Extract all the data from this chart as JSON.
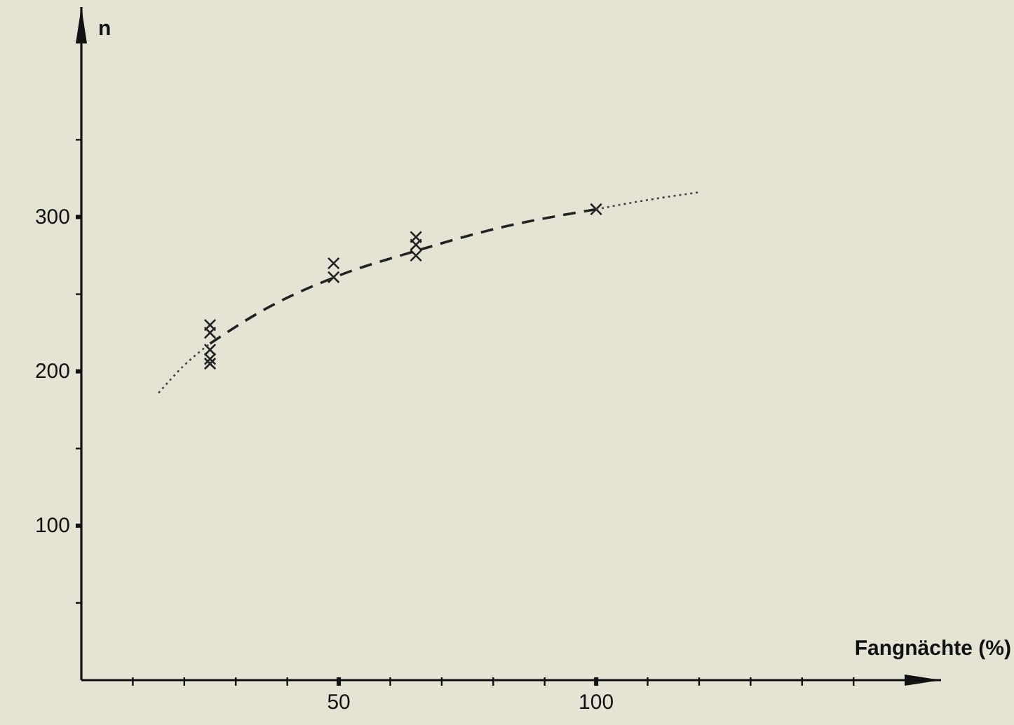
{
  "chart_data": {
    "type": "scatter",
    "xlabel": "Fangnächte (%)",
    "ylabel": "n",
    "xlim": [
      0,
      167
    ],
    "ylim": [
      0,
      436
    ],
    "xticks": [
      {
        "value": 10,
        "label": null
      },
      {
        "value": 20,
        "label": null
      },
      {
        "value": 30,
        "label": null
      },
      {
        "value": 40,
        "label": null
      },
      50,
      {
        "value": 60,
        "label": null
      },
      {
        "value": 70,
        "label": null
      },
      {
        "value": 80,
        "label": null
      },
      {
        "value": 90,
        "label": null
      },
      100,
      {
        "value": 110,
        "label": null
      },
      {
        "value": 120,
        "label": null
      },
      {
        "value": 130,
        "label": null
      },
      {
        "value": 140,
        "label": null
      },
      {
        "value": 150,
        "label": null
      }
    ],
    "yticks": [
      {
        "value": 50,
        "label": null
      },
      100,
      {
        "value": 150,
        "label": null
      },
      200,
      {
        "value": 250,
        "label": null
      },
      300,
      {
        "value": 350,
        "label": null
      }
    ],
    "grid": false,
    "series": [
      {
        "type": "scatter",
        "marker": "cross",
        "color": "#222222",
        "x": [
          25,
          25,
          25,
          25,
          25,
          49,
          49,
          65,
          65,
          65,
          100
        ],
        "values": [
          230,
          225,
          214,
          208,
          205,
          270,
          261,
          287,
          282,
          275,
          305
        ]
      },
      {
        "type": "line",
        "line_style": "dashed",
        "marker": "none",
        "color": "#222222",
        "x": [
          25,
          35,
          50,
          65,
          80,
          100
        ],
        "values": [
          218,
          239,
          262,
          278,
          292,
          305
        ]
      },
      {
        "type": "line",
        "line_style": "dotted",
        "marker": "none",
        "color": "#444444",
        "x": [
          15,
          20,
          25
        ],
        "values": [
          186,
          204,
          218
        ]
      },
      {
        "type": "line",
        "line_style": "dotted",
        "marker": "none",
        "color": "#444444",
        "x": [
          100,
          110,
          120
        ],
        "values": [
          305,
          311,
          316
        ]
      }
    ]
  }
}
